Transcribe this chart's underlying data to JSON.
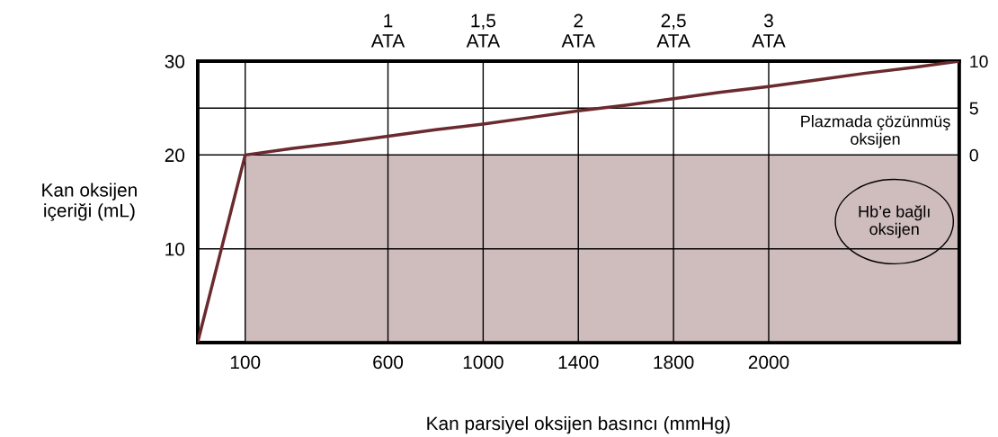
{
  "chart_data": {
    "type": "line",
    "xlabel": "Kan parsiyel oksijen basıncı (mmHg)",
    "ylabel": "Kan oksijen\niçeriği (mL)",
    "categories": [
      null,
      "100",
      null,
      null,
      "600",
      null,
      "1000",
      null,
      "1400",
      null,
      "1800",
      null,
      "2000",
      null,
      null,
      null,
      null
    ],
    "series": [
      {
        "type": "area",
        "color": "#cfbcbd",
        "values": [
          null,
          20,
          20,
          20,
          20,
          20,
          20,
          20,
          20,
          20,
          20,
          20,
          20,
          20,
          20,
          20,
          20
        ]
      },
      {
        "color": "#6b2a2e",
        "values": [
          0,
          20,
          20.7,
          21.3,
          22,
          22.7,
          23.3,
          24,
          24.7,
          25.3,
          26,
          26.7,
          27.3,
          28,
          28.7,
          29.3,
          30
        ]
      }
    ],
    "ylim": [
      0,
      30
    ],
    "yticks": [
      10,
      20,
      30
    ],
    "y2lim": [
      -20,
      10
    ],
    "y2ticks": [
      0,
      5,
      10
    ],
    "x2lim": [
      0,
      4
    ],
    "x2ticks": [
      {
        "value": 1,
        "label": "1\nATA"
      },
      {
        "value": 1.5,
        "label": "1,5\nATA"
      },
      {
        "value": 2,
        "label": "2\nATA"
      },
      {
        "value": 2.5,
        "label": "2,5\nATA"
      },
      {
        "value": 3,
        "label": "3\nATA"
      }
    ],
    "grid": true,
    "annotations": [
      "Plazmada çözünmüş\noksijen",
      "Hb’e bağlı\noksijen"
    ]
  }
}
